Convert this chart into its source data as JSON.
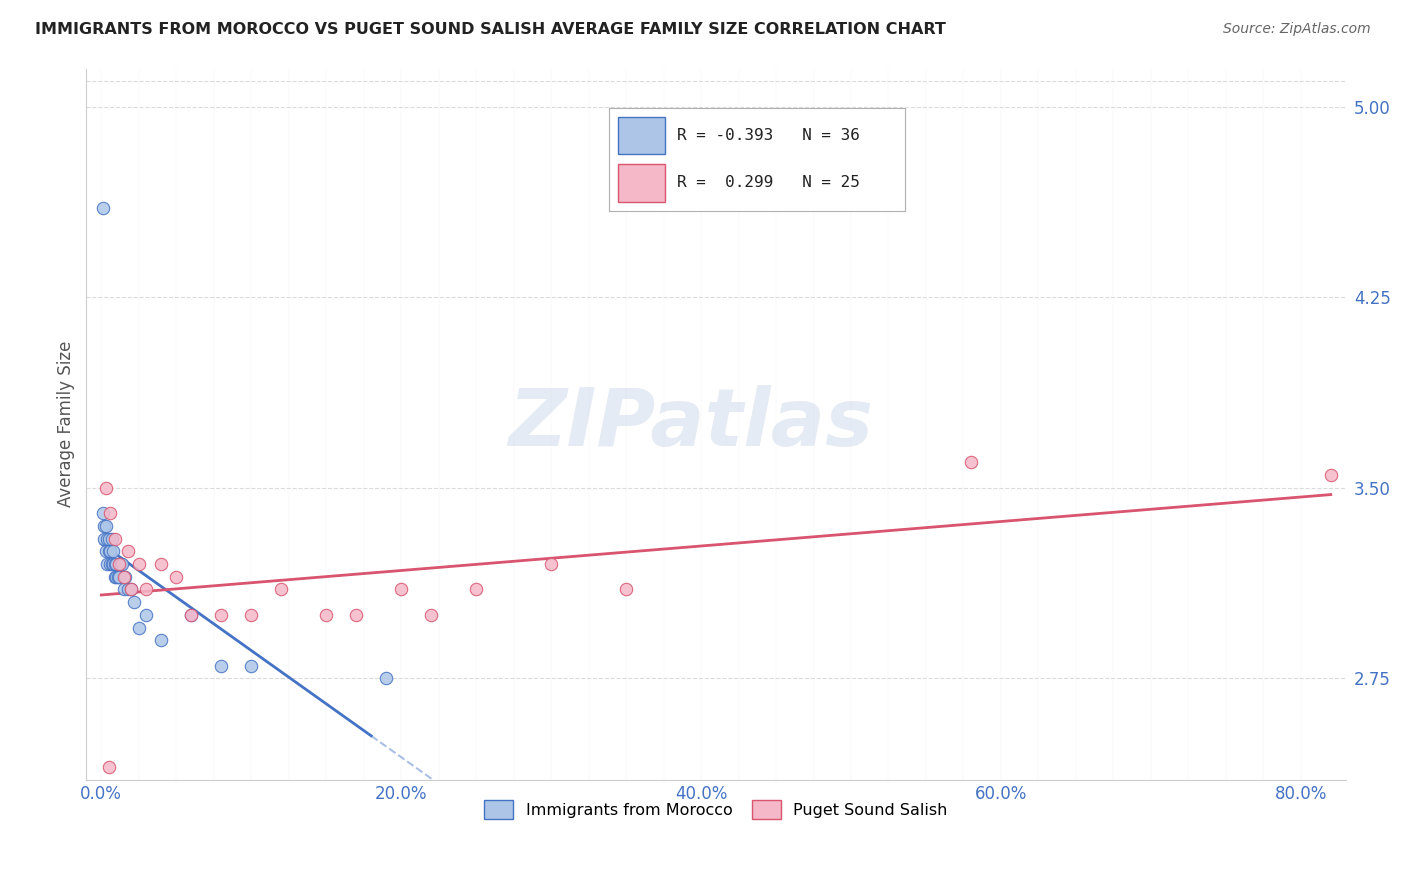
{
  "title": "IMMIGRANTS FROM MOROCCO VS PUGET SOUND SALISH AVERAGE FAMILY SIZE CORRELATION CHART",
  "source": "Source: ZipAtlas.com",
  "ylabel": "Average Family Size",
  "xlabel_ticks": [
    "0.0%",
    "",
    "",
    "",
    "",
    "",
    "",
    "",
    "20.0%",
    "",
    "",
    "",
    "",
    "",
    "",
    "",
    "40.0%",
    "",
    "",
    "",
    "",
    "",
    "",
    "",
    "60.0%",
    "",
    "",
    "",
    "",
    "",
    "",
    "",
    "80.0%"
  ],
  "xlabel_vals": [
    0.0,
    0.025,
    0.05,
    0.075,
    0.1,
    0.125,
    0.15,
    0.175,
    0.2,
    0.225,
    0.25,
    0.275,
    0.3,
    0.325,
    0.35,
    0.375,
    0.4,
    0.425,
    0.45,
    0.475,
    0.5,
    0.525,
    0.55,
    0.575,
    0.6,
    0.625,
    0.65,
    0.675,
    0.7,
    0.725,
    0.75,
    0.775,
    0.8
  ],
  "xlabel_major_ticks": [
    0.0,
    0.2,
    0.4,
    0.6,
    0.8
  ],
  "xlabel_major_labels": [
    "0.0%",
    "20.0%",
    "40.0%",
    "60.0%",
    "80.0%"
  ],
  "ylim": [
    2.35,
    5.15
  ],
  "xlim": [
    -0.01,
    0.83
  ],
  "yticks": [
    2.75,
    3.5,
    4.25,
    5.0
  ],
  "title_color": "#222222",
  "axis_color": "#4472c4",
  "source_color": "#666666",
  "morocco_R": -0.393,
  "morocco_N": 36,
  "salish_R": 0.299,
  "salish_N": 25,
  "morocco_color": "#adc6e8",
  "salish_color": "#f5b8c8",
  "morocco_line_color": "#4472c4",
  "salish_line_color": "#d9546e",
  "morocco_x": [
    0.001,
    0.001,
    0.002,
    0.002,
    0.003,
    0.003,
    0.004,
    0.004,
    0.005,
    0.005,
    0.006,
    0.006,
    0.007,
    0.007,
    0.008,
    0.008,
    0.009,
    0.009,
    0.01,
    0.01,
    0.011,
    0.012,
    0.013,
    0.014,
    0.015,
    0.016,
    0.018,
    0.02,
    0.022,
    0.025,
    0.03,
    0.04,
    0.06,
    0.08,
    0.1,
    0.19
  ],
  "morocco_y": [
    4.6,
    3.4,
    3.35,
    3.3,
    3.35,
    3.25,
    3.3,
    3.2,
    3.25,
    3.3,
    3.25,
    3.2,
    3.3,
    3.2,
    3.25,
    3.2,
    3.2,
    3.15,
    3.2,
    3.15,
    3.15,
    3.15,
    3.2,
    3.2,
    3.1,
    3.15,
    3.1,
    3.1,
    3.05,
    2.95,
    3.0,
    2.9,
    3.0,
    2.8,
    2.8,
    2.75
  ],
  "salish_x": [
    0.003,
    0.006,
    0.009,
    0.012,
    0.015,
    0.018,
    0.02,
    0.025,
    0.03,
    0.04,
    0.05,
    0.06,
    0.08,
    0.1,
    0.12,
    0.15,
    0.17,
    0.2,
    0.22,
    0.25,
    0.3,
    0.35,
    0.58,
    0.82,
    0.005
  ],
  "salish_y": [
    3.5,
    3.4,
    3.3,
    3.2,
    3.15,
    3.25,
    3.1,
    3.2,
    3.1,
    3.2,
    3.15,
    3.0,
    3.0,
    3.0,
    3.1,
    3.0,
    3.0,
    3.1,
    3.0,
    3.1,
    3.2,
    3.1,
    3.6,
    3.55,
    2.4
  ],
  "legend_entries": [
    "Immigrants from Morocco",
    "Puget Sound Salish"
  ],
  "watermark": "ZIPatlas",
  "background_color": "#ffffff",
  "grid_color": "#cccccc"
}
